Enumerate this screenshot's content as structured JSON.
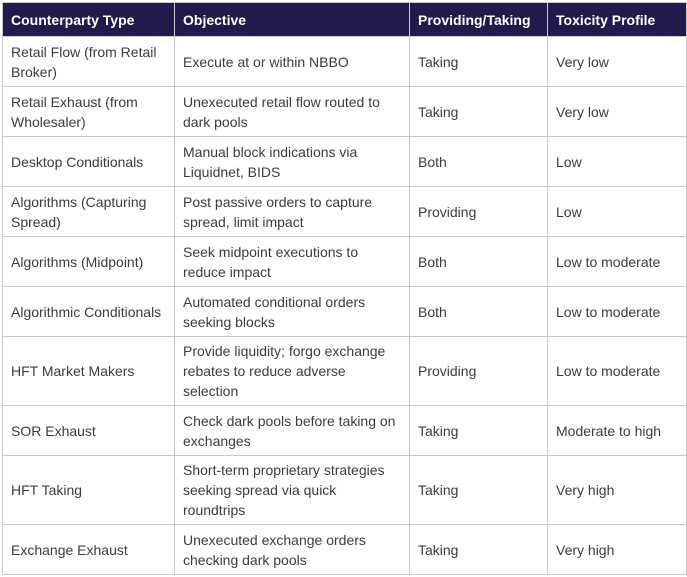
{
  "colors": {
    "header_bg": "#211a4d",
    "header_text": "#ffffff",
    "border": "#c9c9c9",
    "body_text": "#3c3c3c",
    "background": "#ffffff"
  },
  "table": {
    "headers": [
      "Counterparty Type",
      "Objective",
      "Providing/Taking",
      "Toxicity Profile"
    ],
    "rows": [
      {
        "type": "Retail Flow (from Retail Broker)",
        "objective": "Execute at or within NBBO",
        "providing_taking": "Taking",
        "toxicity": "Very low"
      },
      {
        "type": "Retail Exhaust (from Wholesaler)",
        "objective": "Unexecuted retail flow routed to dark pools",
        "providing_taking": "Taking",
        "toxicity": "Very low"
      },
      {
        "type": "Desktop Conditionals",
        "objective": "Manual block indications via Liquidnet, BIDS",
        "providing_taking": "Both",
        "toxicity": "Low"
      },
      {
        "type": "Algorithms (Capturing Spread)",
        "objective": "Post passive orders to capture spread, limit impact",
        "providing_taking": "Providing",
        "toxicity": "Low"
      },
      {
        "type": "Algorithms (Midpoint)",
        "objective": "Seek midpoint executions to reduce impact",
        "providing_taking": "Both",
        "toxicity": "Low to moderate"
      },
      {
        "type": "Algorithmic Conditionals",
        "objective": "Automated conditional orders seeking blocks",
        "providing_taking": "Both",
        "toxicity": "Low to moderate"
      },
      {
        "type": "HFT Market Makers",
        "objective": "Provide liquidity; forgo exchange rebates to reduce adverse selection",
        "providing_taking": "Providing",
        "toxicity": "Low to moderate"
      },
      {
        "type": "SOR Exhaust",
        "objective": "Check dark pools before taking on exchanges",
        "providing_taking": "Taking",
        "toxicity": "Moderate to high"
      },
      {
        "type": "HFT Taking",
        "objective": "Short-term proprietary strategies seeking spread via quick roundtrips",
        "providing_taking": "Taking",
        "toxicity": "Very high"
      },
      {
        "type": "Exchange Exhaust",
        "objective": "Unexecuted exchange orders checking dark pools",
        "providing_taking": "Taking",
        "toxicity": "Very high"
      }
    ]
  },
  "chart_data": {
    "type": "table",
    "title": "",
    "columns": [
      "Counterparty Type",
      "Objective",
      "Providing/Taking",
      "Toxicity Profile"
    ],
    "rows": [
      [
        "Retail Flow (from Retail Broker)",
        "Execute at or within NBBO",
        "Taking",
        "Very low"
      ],
      [
        "Retail Exhaust (from Wholesaler)",
        "Unexecuted retail flow routed to dark pools",
        "Taking",
        "Very low"
      ],
      [
        "Desktop Conditionals",
        "Manual block indications via Liquidnet, BIDS",
        "Both",
        "Low"
      ],
      [
        "Algorithms (Capturing Spread)",
        "Post passive orders to capture spread, limit impact",
        "Providing",
        "Low"
      ],
      [
        "Algorithms (Midpoint)",
        "Seek midpoint executions to reduce impact",
        "Both",
        "Low to moderate"
      ],
      [
        "Algorithmic Conditionals",
        "Automated conditional orders seeking blocks",
        "Both",
        "Low to moderate"
      ],
      [
        "HFT Market Makers",
        "Provide liquidity; forgo exchange rebates to reduce adverse selection",
        "Providing",
        "Low to moderate"
      ],
      [
        "SOR Exhaust",
        "Check dark pools before taking on exchanges",
        "Taking",
        "Moderate to high"
      ],
      [
        "HFT Taking",
        "Short-term proprietary strategies seeking spread via quick roundtrips",
        "Taking",
        "Very high"
      ],
      [
        "Exchange Exhaust",
        "Unexecuted exchange orders checking dark pools",
        "Taking",
        "Very high"
      ]
    ],
    "layout": {
      "header_style": "dark-indigo-bar",
      "grid": true,
      "legend": "none"
    }
  }
}
